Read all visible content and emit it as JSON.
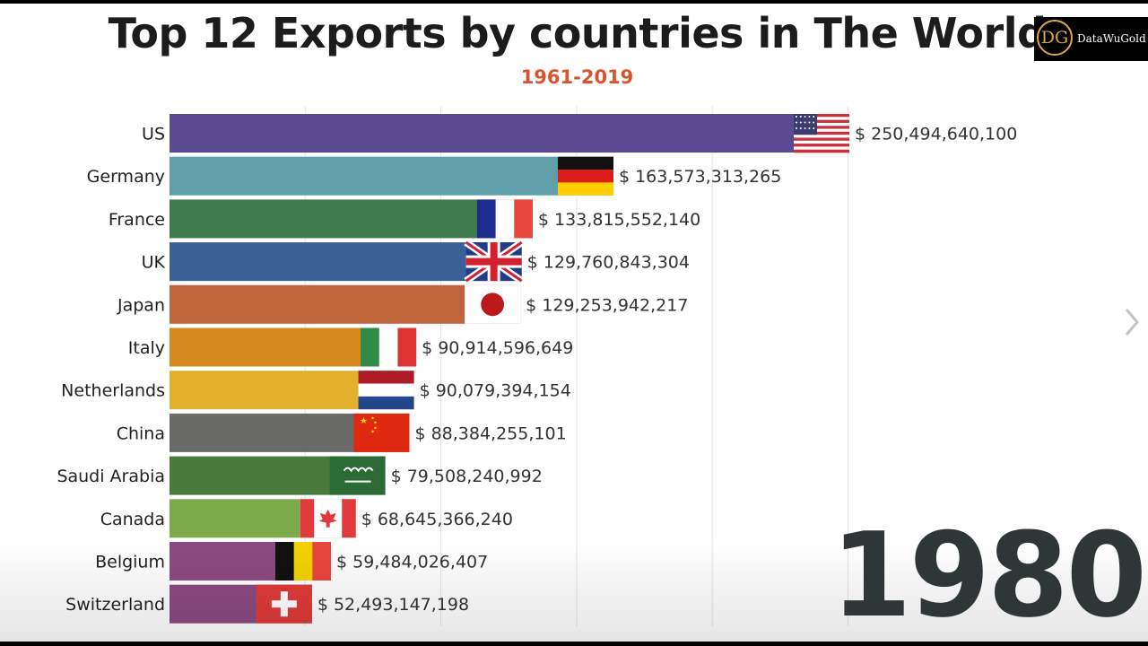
{
  "header": {
    "title": "Top 12 Exports by countries in The World",
    "subtitle": "1961-2019"
  },
  "logo": {
    "initials": "DG",
    "name": "DataWuGold"
  },
  "year": "1980",
  "colors": {
    "subtitle": "#d9532e",
    "year": "#2f3638",
    "grid": "#e4e4e4"
  },
  "icons": {
    "next": "chevron-right-icon"
  },
  "chart_data": {
    "type": "bar",
    "orientation": "horizontal",
    "title": "Top 12 Exports by countries in The World",
    "subtitle": "1961-2019",
    "xlim": [
      0,
      255000000000
    ],
    "grid": true,
    "categories": [
      "US",
      "Germany",
      "France",
      "UK",
      "Japan",
      "Italy",
      "Netherlands",
      "China",
      "Saudi Arabia",
      "Canada",
      "Belgium",
      "Switzerland"
    ],
    "values": [
      250494640100,
      163573313265,
      133815552140,
      129760843304,
      129253942217,
      90914596649,
      90079394154,
      88384255101,
      79508240992,
      68645366240,
      59484026407,
      52493147198
    ],
    "value_labels": [
      "$ 250,494,640,100",
      "$ 163,573,313,265",
      "$ 133,815,552,140",
      "$ 129,760,843,304",
      "$ 129,253,942,217",
      "$ 90,914,596,649",
      "$ 90,079,394,154",
      "$ 88,384,255,101",
      "$ 79,508,240,992",
      "$ 68,645,366,240",
      "$ 59,484,026,407",
      "$ 52,493,147,198"
    ],
    "bar_colors": [
      "#5b4a92",
      "#5f9faa",
      "#3e7a4c",
      "#3c5f98",
      "#c0643c",
      "#d6891f",
      "#e3b02e",
      "#6a6a68",
      "#4a7a3c",
      "#7eaa4c",
      "#8c4a82",
      "#8c4a82"
    ],
    "flags": [
      "us-flag-icon",
      "germany-flag-icon",
      "france-flag-icon",
      "uk-flag-icon",
      "japan-flag-icon",
      "italy-flag-icon",
      "netherlands-flag-icon",
      "china-flag-icon",
      "saudi-arabia-flag-icon",
      "canada-flag-icon",
      "belgium-flag-icon",
      "switzerland-flag-icon"
    ]
  }
}
